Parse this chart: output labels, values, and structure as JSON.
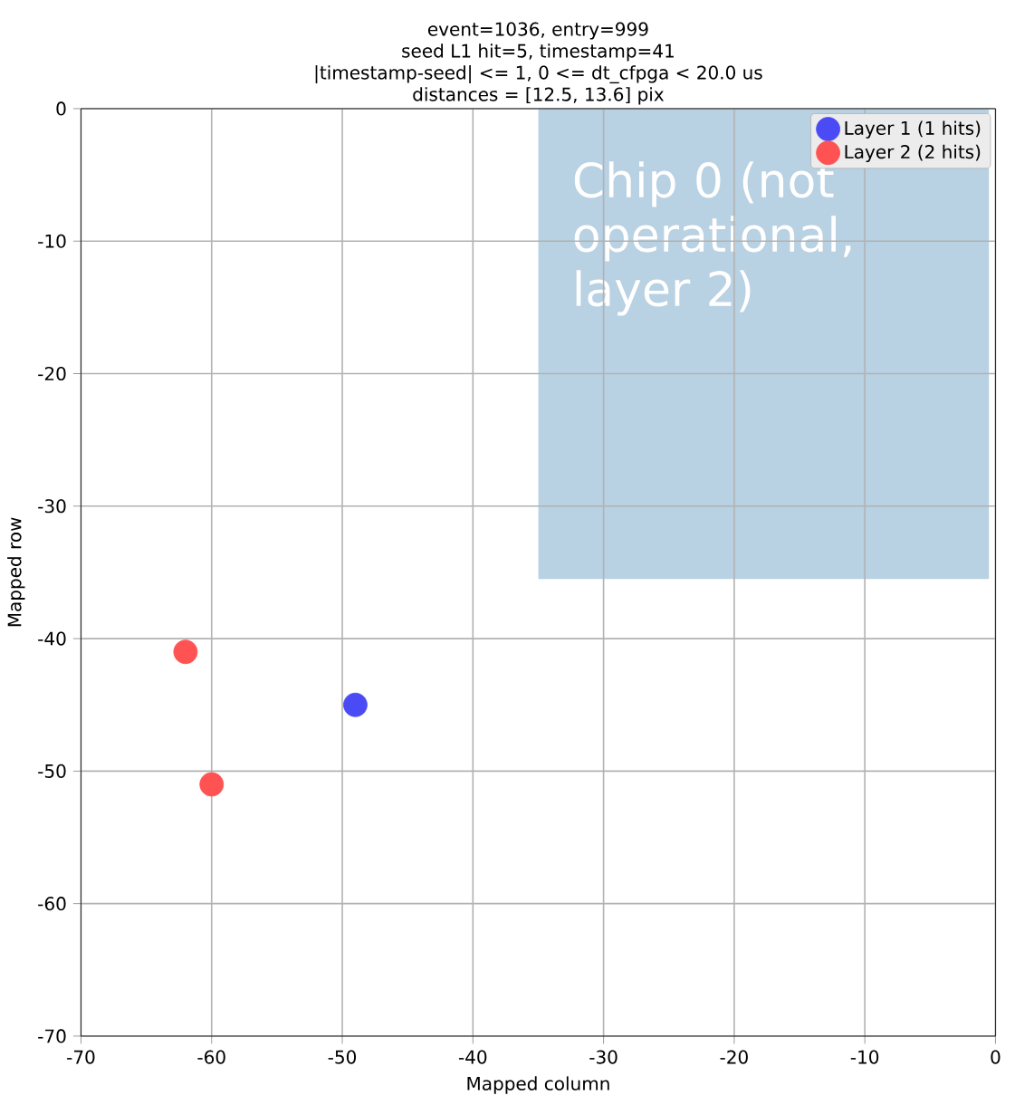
{
  "chart_data": {
    "type": "scatter",
    "title": "event=1036, entry=999",
    "subtitle": "seed L1 hit=5, timestamp=41\n|timestamp-seed| <= 1, 0 <= dt_cfpga < 20.0 us\ndistances = [12.5, 13.6] pix",
    "xlabel": "Mapped column",
    "ylabel": "Mapped row",
    "series": [
      {
        "name": "Layer 1 (1 hits)",
        "color": "#4b4bf5",
        "marker": "circle",
        "x": [
          -49
        ],
        "values": [
          -45
        ]
      },
      {
        "name": "Layer 2 (2 hits)",
        "color": "#ff5252",
        "marker": "circle",
        "x": [
          -62,
          -60
        ],
        "values": [
          -41,
          -51
        ]
      },
      {
        "type": "area",
        "color": "#b8d1e3",
        "marker": "none",
        "x": [
          -35,
          -0.5
        ],
        "values": [
          -35.5,
          -35.5
        ]
      }
    ],
    "annotations": [
      "Chip 0 (not operational, layer 2)"
    ],
    "xlim": [
      -70,
      0
    ],
    "ylim": [
      -70,
      0
    ],
    "xticks": [
      -70,
      -60,
      -50,
      -40,
      -30,
      -20,
      -10,
      0
    ],
    "yticks": [
      -70,
      -60,
      -50,
      -40,
      -30,
      -20,
      -10,
      0
    ],
    "grid": true,
    "legend": "top right"
  }
}
